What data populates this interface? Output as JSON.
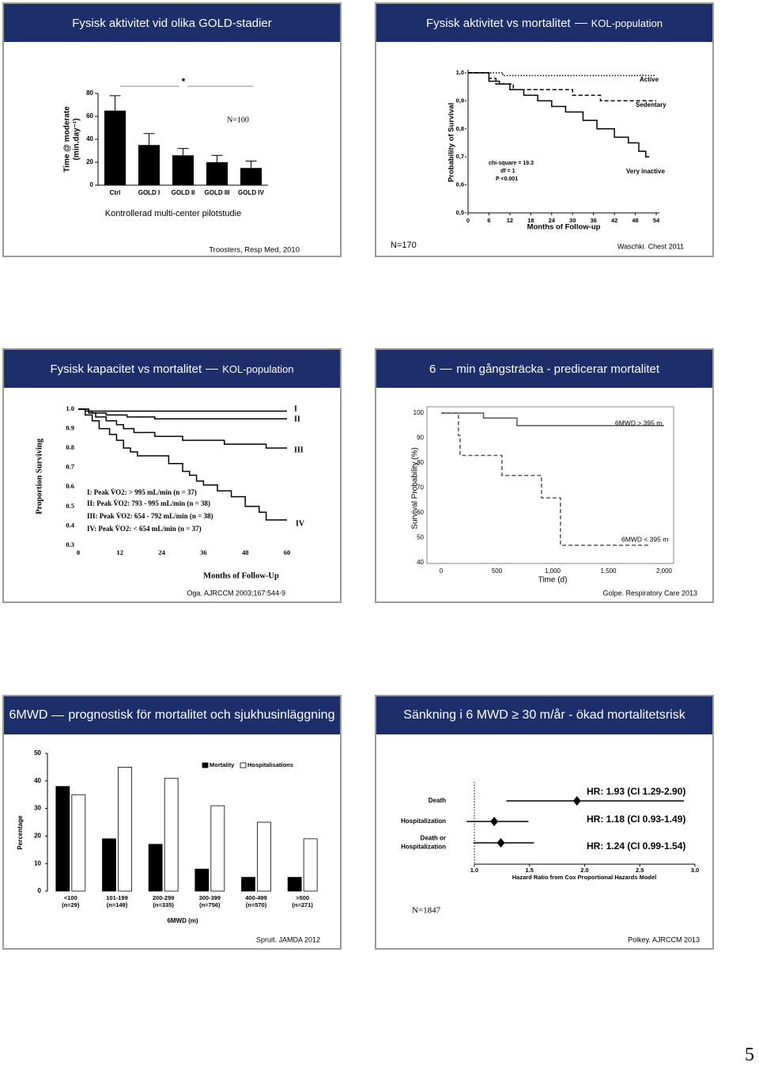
{
  "slides": [
    {
      "title": [
        "Fysisk aktivitet vid olika GOLD-stadier"
      ],
      "chart": {
        "type": "bar",
        "ylabel": [
          "Time @ moderate",
          "(min.day⁻¹)"
        ],
        "categories": [
          "Ctrl",
          "GOLD I",
          "GOLD II",
          "GOLD III",
          "GOLD IV"
        ],
        "values": [
          65,
          35,
          26,
          20,
          15
        ],
        "errors": [
          13,
          10,
          6,
          6,
          6
        ],
        "color": "#000000",
        "ylim": [
          0,
          80
        ],
        "yticks": [
          0,
          20,
          40,
          60,
          80
        ],
        "annotations": [
          "*",
          "N=100"
        ]
      },
      "caption": "Kontrollerad multi-center pilotstudie",
      "source": "Troosters, Resp Med, 2010"
    },
    {
      "title": [
        "Fysisk aktivitet vs mortalitet",
        "KOL-population"
      ],
      "chart": {
        "type": "survival",
        "xlabel": "Months of Follow-up",
        "ylabel": "Probability of Survival",
        "xlim": [
          0,
          54
        ],
        "xticks": [
          0,
          6,
          12,
          18,
          24,
          30,
          36,
          42,
          48,
          54
        ],
        "ylim": [
          0.5,
          1
        ],
        "yticks": [
          {
            "value": 0.5,
            "label": "0,5"
          },
          {
            "value": 0.6,
            "label": "0,6"
          },
          {
            "value": 0.7,
            "label": "0,7"
          },
          {
            "value": 0.8,
            "label": "0,8"
          },
          {
            "value": 0.9,
            "label": "0,9"
          },
          {
            "value": 1,
            "label": "1,0"
          }
        ],
        "series": [
          {
            "name": "Active",
            "color": "#000000",
            "style": "dotted",
            "x": [
              0,
              10,
              10,
              54
            ],
            "values": [
              1,
              1,
              0.99,
              0.99
            ]
          },
          {
            "name": "Sedentary",
            "color": "#000000",
            "style": "dashed",
            "x": [
              0,
              6,
              6,
              8,
              8,
              13,
              13,
              30,
              30,
              38,
              38,
              54
            ],
            "values": [
              1,
              1,
              0.98,
              0.98,
              0.96,
              0.96,
              0.94,
              0.94,
              0.92,
              0.92,
              0.9,
              0.9
            ]
          },
          {
            "name": "Very inactive",
            "color": "#000000",
            "style": "solid",
            "x": [
              0,
              6,
              6,
              9,
              9,
              12,
              12,
              16,
              16,
              20,
              20,
              24,
              24,
              28,
              28,
              33,
              33,
              37,
              37,
              42,
              42,
              46,
              46,
              49,
              49,
              51,
              51,
              52
            ],
            "values": [
              1,
              1,
              0.97,
              0.97,
              0.96,
              0.96,
              0.94,
              0.94,
              0.92,
              0.92,
              0.9,
              0.9,
              0.88,
              0.88,
              0.86,
              0.86,
              0.83,
              0.83,
              0.8,
              0.8,
              0.77,
              0.77,
              0.75,
              0.75,
              0.72,
              0.72,
              0.7,
              0.7
            ]
          }
        ],
        "annotations": [
          "chi-square = 19.3",
          "df = 1",
          "P <0.001"
        ]
      },
      "note": "N=170",
      "source": "Waschki. Chest 2011"
    },
    {
      "title": [
        "Fysisk kapacitet vs mortalitet",
        "KOL-population"
      ],
      "chart": {
        "type": "survival",
        "xlabel": "Months of Follow-Up",
        "ylabel": "Proportion Surviving",
        "xlim": [
          0,
          60
        ],
        "xticks": [
          0,
          12,
          24,
          36,
          48,
          60
        ],
        "ylim": [
          0.3,
          1
        ],
        "yticks": [
          0.3,
          0.4,
          0.5,
          0.6,
          0.7,
          0.8,
          0.9,
          {
            "value": 1,
            "label": "1.0"
          }
        ],
        "series": [
          {
            "name": "I",
            "color": "#000000",
            "style": "solid",
            "x": [
              0,
              3,
              3,
              60
            ],
            "values": [
              1,
              1,
              0.99,
              0.99
            ]
          },
          {
            "name": "II",
            "color": "#000000",
            "style": "solid",
            "x": [
              0,
              2,
              2,
              4,
              4,
              8,
              8,
              14,
              14,
              22,
              22,
              60
            ],
            "values": [
              1,
              1,
              0.99,
              0.99,
              0.98,
              0.98,
              0.97,
              0.97,
              0.96,
              0.96,
              0.95,
              0.95
            ]
          },
          {
            "name": "III",
            "color": "#000000",
            "style": "solid",
            "x": [
              0,
              3,
              3,
              5,
              5,
              8,
              8,
              11,
              11,
              13,
              13,
              16,
              16,
              22,
              22,
              30,
              30,
              42,
              42,
              54,
              54,
              60
            ],
            "values": [
              1,
              1,
              0.98,
              0.98,
              0.96,
              0.96,
              0.94,
              0.94,
              0.92,
              0.92,
              0.9,
              0.9,
              0.88,
              0.88,
              0.86,
              0.86,
              0.84,
              0.84,
              0.82,
              0.82,
              0.8,
              0.8
            ]
          },
          {
            "name": "IV",
            "color": "#000000",
            "style": "solid",
            "x": [
              0,
              2,
              2,
              4,
              4,
              6,
              6,
              9,
              9,
              11,
              11,
              13,
              13,
              15,
              15,
              17,
              17,
              26,
              26,
              30,
              30,
              32,
              32,
              34,
              34,
              36,
              36,
              40,
              40,
              44,
              44,
              48,
              48,
              52,
              52,
              54,
              54,
              60
            ],
            "values": [
              1,
              1,
              0.97,
              0.97,
              0.94,
              0.94,
              0.9,
              0.9,
              0.87,
              0.87,
              0.84,
              0.84,
              0.8,
              0.8,
              0.78,
              0.78,
              0.76,
              0.76,
              0.72,
              0.72,
              0.68,
              0.68,
              0.66,
              0.66,
              0.63,
              0.63,
              0.61,
              0.61,
              0.58,
              0.58,
              0.55,
              0.55,
              0.5,
              0.5,
              0.47,
              0.47,
              0.43,
              0.43
            ]
          }
        ],
        "descriptions": [
          "I: Peak V̇O2: > 995 mL/min (n = 37)",
          "II: Peak V̇O2: 793 - 995 mL/min (n = 38)",
          "III: Peak V̇O2: 654 - 792 mL/min (n = 38)",
          "IV: Peak V̇O2: < 654 mL/min (n = 37)"
        ]
      },
      "source": "Oga. AJRCCM 2003;167:544-9"
    },
    {
      "title": [
        "6",
        "min gångsträcka - predicerar mortalitet"
      ],
      "chart": {
        "type": "survival",
        "xlabel": "Time (d)",
        "ylabel": "Survival Probability (%)",
        "xlim": [
          0,
          2000
        ],
        "xticks": [
          0,
          500,
          {
            "value": 1000,
            "label": "1,000"
          },
          {
            "value": 1500,
            "label": "1,500"
          },
          {
            "value": 2000,
            "label": "2,000"
          }
        ],
        "ylim": [
          40,
          100
        ],
        "yticks": [
          40,
          50,
          60,
          70,
          80,
          90,
          100
        ],
        "series": [
          {
            "name": "6MWD > 395 m",
            "color": "#555555",
            "style": "solid",
            "x": [
              0,
              380,
              380,
              680,
              680,
              2000
            ],
            "values": [
              100,
              100,
              98,
              98,
              95,
              95
            ]
          },
          {
            "name": "6MWD < 395 m",
            "color": "#555555",
            "style": "dashed",
            "x": [
              0,
              155,
              155,
              170,
              170,
              545,
              545,
              900,
              900,
              1070,
              1070,
              1870
            ],
            "values": [
              100,
              100,
              91,
              91,
              83,
              83,
              75,
              75,
              66,
              66,
              47,
              47
            ]
          }
        ]
      },
      "source": "Golpe. Respiratory Care 2013"
    },
    {
      "title": [
        "6MWD",
        "prognostisk för mortalitet och sjukhusinläggning"
      ],
      "chart": {
        "type": "grouped_bar",
        "xlabel": "6MWD (m)",
        "ylabel": "Percentage",
        "categories": [
          "<100",
          "101-199",
          "200-299",
          "300-399",
          "400-499",
          ">500"
        ],
        "sublabels": [
          "(n=29)",
          "(n=149)",
          "(n=335)",
          "(n=756)",
          "(n=570)",
          "(n=271)"
        ],
        "ylim": [
          0,
          50
        ],
        "yticks": [
          0,
          10,
          20,
          30,
          40,
          50
        ],
        "series": [
          {
            "name": "Mortality",
            "color": "#000000",
            "values": [
              38,
              19,
              17,
              8,
              5,
              5
            ]
          },
          {
            "name": "Hospitalisations",
            "color": "#ffffff",
            "values": [
              35,
              45,
              41,
              31,
              25,
              19
            ]
          }
        ]
      },
      "source": "Spruit. JAMDA 2012"
    },
    {
      "title": [
        "Sänkning i 6 MWD ≥ 30 m/år - ökad mortalitetsrisk"
      ],
      "chart": {
        "type": "forest",
        "xlabel": "Hazard Ratio from Cox Proportional Hazards Model",
        "categories": [
          [
            "Death"
          ],
          [
            "Hospitalization"
          ],
          [
            "Death or",
            "Hospitalization"
          ]
        ],
        "values": [
          1.93,
          1.18,
          1.24
        ],
        "ci_low": [
          1.29,
          0.93,
          0.99
        ],
        "ci_high": [
          2.9,
          1.49,
          1.54
        ],
        "value_labels": [
          "HR: 1.93 (CI 1.29-2.90)",
          "HR: 1.18 (CI 0.93-1.49)",
          "HR: 1.24 (CI 0.99-1.54)"
        ],
        "reference": 1,
        "xlim": [
          1,
          3
        ],
        "xticks": [
          {
            "value": 1,
            "label": "1.0"
          },
          1.5,
          {
            "value": 2,
            "label": "2.0"
          },
          2.5,
          {
            "value": 3,
            "label": "3.0"
          }
        ]
      },
      "note": "N=1847",
      "source": "Polkey. AJRCCM 2013"
    }
  ],
  "page_number": "5"
}
